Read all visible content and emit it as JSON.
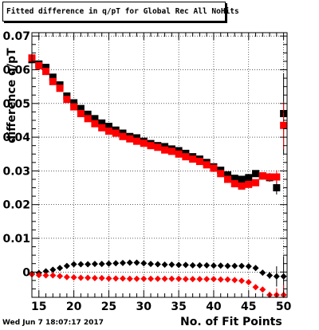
{
  "chart_data": {
    "type": "scatter",
    "title": "Fitted difference in q/pT for Global Rec All NoHits",
    "xlabel": "No. of Fit Points",
    "ylabel": "difference  q/pT",
    "xlim": [
      14,
      50.5
    ],
    "ylim": [
      -0.0075,
      0.071
    ],
    "xticks": [
      15,
      20,
      25,
      30,
      35,
      40,
      45,
      50
    ],
    "yticks": [
      0,
      0.01,
      0.02,
      0.03,
      0.04,
      0.05,
      0.06,
      0.07
    ],
    "ytick_labels": [
      "0",
      "0.01",
      "0.02",
      "0.03",
      "0.04",
      "0.05",
      "0.06",
      "0.07"
    ],
    "grid": true,
    "series": [
      {
        "marker": "square",
        "color": "#000000",
        "x": [
          14,
          15,
          16,
          17,
          18,
          19,
          20,
          21,
          22,
          23,
          24,
          25,
          26,
          27,
          28,
          29,
          30,
          31,
          32,
          33,
          34,
          35,
          36,
          37,
          38,
          39,
          40,
          41,
          42,
          43,
          44,
          45,
          46,
          47,
          48,
          49,
          50
        ],
        "y": [
          0.063,
          0.0617,
          0.0607,
          0.0578,
          0.0555,
          0.0522,
          0.0502,
          0.0485,
          0.0468,
          0.0455,
          0.0442,
          0.0432,
          0.0421,
          0.0412,
          0.0402,
          0.0398,
          0.0388,
          0.0381,
          0.0375,
          0.0372,
          0.0365,
          0.036,
          0.0352,
          0.0342,
          0.0335,
          0.0325,
          0.0312,
          0.0302,
          0.0288,
          0.0278,
          0.0275,
          0.028,
          0.0292,
          0.0285,
          0.028,
          0.025,
          0.047
        ],
        "yerr": [
          0.0008,
          0.0006,
          0.0005,
          0.0005,
          0.0004,
          0.0004,
          0.0003,
          0.0003,
          0.0003,
          0.0003,
          0.0003,
          0.0003,
          0.0003,
          0.0003,
          0.0003,
          0.0003,
          0.0003,
          0.0003,
          0.0003,
          0.0003,
          0.0003,
          0.0003,
          0.0003,
          0.0003,
          0.0003,
          0.0003,
          0.0003,
          0.0003,
          0.0003,
          0.0003,
          0.0003,
          0.0004,
          0.0005,
          0.0008,
          0.0012,
          0.002,
          0.012
        ]
      },
      {
        "marker": "square",
        "color": "#ff0000",
        "x": [
          14,
          15,
          16,
          17,
          18,
          19,
          20,
          21,
          22,
          23,
          24,
          25,
          26,
          27,
          28,
          29,
          30,
          31,
          32,
          33,
          34,
          35,
          36,
          37,
          38,
          39,
          40,
          41,
          42,
          43,
          44,
          45,
          46,
          47,
          48,
          49,
          50
        ],
        "y": [
          0.0635,
          0.0612,
          0.0595,
          0.0565,
          0.0545,
          0.0512,
          0.049,
          0.047,
          0.0455,
          0.044,
          0.0428,
          0.0418,
          0.0412,
          0.0402,
          0.0395,
          0.0388,
          0.0382,
          0.0375,
          0.037,
          0.0362,
          0.0358,
          0.035,
          0.0342,
          0.0335,
          0.0328,
          0.0318,
          0.0308,
          0.0292,
          0.0275,
          0.0262,
          0.0255,
          0.026,
          0.0265,
          0.0285,
          0.0282,
          0.0282,
          0.0435
        ],
        "yerr": [
          0.0008,
          0.0006,
          0.0005,
          0.0005,
          0.0004,
          0.0004,
          0.0003,
          0.0003,
          0.0003,
          0.0003,
          0.0003,
          0.0003,
          0.0003,
          0.0003,
          0.0003,
          0.0003,
          0.0003,
          0.0003,
          0.0003,
          0.0003,
          0.0003,
          0.0003,
          0.0003,
          0.0003,
          0.0003,
          0.0003,
          0.0003,
          0.0003,
          0.0003,
          0.0003,
          0.0003,
          0.0004,
          0.0005,
          0.0008,
          0.0012,
          0.002,
          0.007
        ]
      },
      {
        "marker": "diamond",
        "color": "#000000",
        "x": [
          14,
          15,
          16,
          17,
          18,
          19,
          20,
          21,
          22,
          23,
          24,
          25,
          26,
          27,
          28,
          29,
          30,
          31,
          32,
          33,
          34,
          35,
          36,
          37,
          38,
          39,
          40,
          41,
          42,
          43,
          44,
          45,
          46,
          47,
          48,
          49,
          50
        ],
        "y": [
          -0.0005,
          -0.0003,
          0.0002,
          0.0007,
          0.0012,
          0.0018,
          0.0023,
          0.0023,
          0.0023,
          0.0024,
          0.0024,
          0.0025,
          0.0026,
          0.0027,
          0.0028,
          0.0028,
          0.0026,
          0.0024,
          0.0023,
          0.0022,
          0.0022,
          0.0021,
          0.0021,
          0.002,
          0.002,
          0.002,
          0.0019,
          0.0019,
          0.0018,
          0.0018,
          0.0018,
          0.0017,
          0.0012,
          -0.0002,
          -0.001,
          -0.0013,
          -0.0013
        ],
        "yerr": [
          0.0003,
          0.0003,
          0.0002,
          0.0002,
          0.0002,
          0.0002,
          0.0002,
          0.0002,
          0.0002,
          0.0002,
          0.0002,
          0.0002,
          0.0002,
          0.0002,
          0.0002,
          0.0002,
          0.0002,
          0.0002,
          0.0002,
          0.0002,
          0.0002,
          0.0002,
          0.0002,
          0.0002,
          0.0002,
          0.0002,
          0.0002,
          0.0002,
          0.0002,
          0.0002,
          0.0002,
          0.0003,
          0.0004,
          0.0006,
          0.001,
          0.003,
          0.006
        ]
      },
      {
        "marker": "diamond",
        "color": "#ff0000",
        "x": [
          14,
          15,
          16,
          17,
          18,
          19,
          20,
          21,
          22,
          23,
          24,
          25,
          26,
          27,
          28,
          29,
          30,
          31,
          32,
          33,
          34,
          35,
          36,
          37,
          38,
          39,
          40,
          41,
          42,
          43,
          44,
          45,
          46,
          47,
          48,
          49,
          50
        ],
        "y": [
          -0.0007,
          -0.0009,
          -0.001,
          -0.001,
          -0.0012,
          -0.0015,
          -0.0016,
          -0.0017,
          -0.0017,
          -0.0018,
          -0.0018,
          -0.0019,
          -0.0019,
          -0.0019,
          -0.002,
          -0.002,
          -0.002,
          -0.002,
          -0.002,
          -0.002,
          -0.002,
          -0.002,
          -0.0021,
          -0.0021,
          -0.0021,
          -0.0021,
          -0.0021,
          -0.0022,
          -0.0022,
          -0.0024,
          -0.0026,
          -0.003,
          -0.0045,
          -0.0052,
          -0.0068,
          -0.0068,
          -0.0068
        ],
        "yerr": [
          0.0003,
          0.0003,
          0.0002,
          0.0002,
          0.0002,
          0.0002,
          0.0002,
          0.0002,
          0.0002,
          0.0002,
          0.0002,
          0.0002,
          0.0002,
          0.0002,
          0.0002,
          0.0002,
          0.0002,
          0.0002,
          0.0002,
          0.0002,
          0.0002,
          0.0002,
          0.0002,
          0.0002,
          0.0002,
          0.0002,
          0.0002,
          0.0002,
          0.0002,
          0.0002,
          0.0002,
          0.0003,
          0.0004,
          0.0006,
          0.001,
          0.002,
          0.003
        ]
      }
    ]
  },
  "timestamp": "Wed Jun  7 18:07:17 2017"
}
